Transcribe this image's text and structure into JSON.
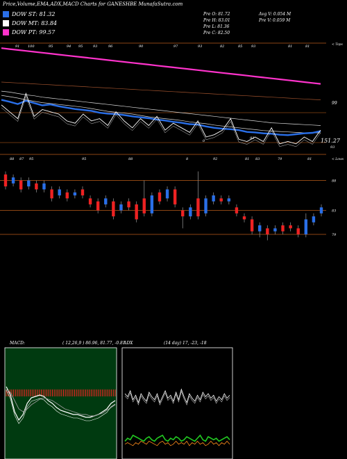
{
  "title": "Price,Volume,EMA,ADX,MACD Charts for GANESHBE MunafaSutra.com",
  "legend": [
    {
      "label": "DOW ST: 81.32",
      "color": "#2a6fe8"
    },
    {
      "label": "DOW MT: 83.84",
      "color": "#ffffff"
    },
    {
      "label": "DOW PT: 99.57",
      "color": "#ff33cc"
    }
  ],
  "stats": {
    "prev_o": "Pre  O: 81.72",
    "prev_h": "Pre  H: 83.01",
    "prev_l": "Pre  L: 81.36",
    "prev_c": "Pre  C: 82.50",
    "avg_v": "Avg V: 0.054  M",
    "prev_v": "Pre  V: 0.059 M"
  },
  "chart_data": [
    {
      "type": "line",
      "name": "price-ema-panel",
      "top_axis_label": "< Tops",
      "top_tick_labels": [
        "91",
        "100",
        "95",
        "94",
        "95",
        "93",
        "96",
        "90",
        "97",
        "93",
        "82",
        "85",
        "93",
        "81",
        "81"
      ],
      "right_labels": [
        "99",
        "151.27",
        "93"
      ],
      "bottom_inner_labels": [
        "0",
        "93"
      ],
      "series": [
        {
          "key": "pt",
          "color": "#ff33cc",
          "values": [
            99.9,
            99.7,
            99.5,
            99.3,
            99.1,
            98.9,
            98.7,
            98.5,
            98.3,
            98.1,
            97.9,
            97.7,
            97.5,
            97.3,
            97.1,
            96.9,
            96.7,
            96.5,
            96.3,
            96.1,
            95.9,
            95.7,
            95.5,
            95.3,
            95.1,
            94.9,
            94.7,
            94.5,
            94.3,
            94.1,
            93.9,
            93.7,
            93.5,
            93.3,
            93.1,
            92.9,
            92.7,
            92.5,
            92.3,
            92.1
          ]
        },
        {
          "key": "brown",
          "color": "#a0522d",
          "values": [
            92.5,
            92.4,
            92.3,
            92.2,
            92.1,
            92.0,
            91.9,
            91.8,
            91.7,
            91.6,
            91.5,
            91.4,
            91.3,
            91.2,
            91.1,
            91.0,
            90.9,
            90.8,
            90.7,
            90.6,
            90.5,
            90.4,
            90.3,
            90.2,
            90.1,
            90.0,
            89.9,
            89.8,
            89.7,
            89.6,
            89.5,
            89.4,
            89.3,
            89.2,
            89.1,
            89.0,
            88.9,
            88.8,
            88.7,
            88.6
          ]
        },
        {
          "key": "white1",
          "color": "#dddddd",
          "values": [
            90.5,
            90.3,
            90.0,
            89.7,
            89.5,
            89.2,
            89.0,
            88.8,
            88.6,
            88.4,
            88.2,
            88.0,
            87.8,
            87.6,
            87.4,
            87.2,
            87.0,
            86.8,
            86.6,
            86.4,
            86.2,
            86.0,
            85.8,
            85.6,
            85.4,
            85.2,
            85.0,
            84.8,
            84.6,
            84.4,
            84.2,
            84.0,
            83.8,
            83.6,
            83.5,
            83.4,
            83.3,
            83.2,
            83.1,
            83.0
          ]
        },
        {
          "key": "white2",
          "color": "#dddddd",
          "values": [
            89.6,
            89.3,
            89.0,
            88.6,
            88.3,
            88.0,
            87.8,
            87.6,
            87.4,
            87.2,
            87.0,
            86.7,
            86.4,
            86.1,
            85.9,
            85.7,
            85.5,
            85.2,
            84.9,
            84.7,
            84.5,
            84.3,
            84.1,
            83.8,
            83.6,
            83.4,
            83.1,
            82.9,
            82.7,
            82.5,
            82.3,
            82.1,
            81.9,
            81.8,
            81.7,
            81.6,
            81.5,
            81.4,
            81.4,
            81.4
          ]
        },
        {
          "key": "st",
          "color": "#2a6fe8",
          "values": [
            88.6,
            88.2,
            87.7,
            88.4,
            87.9,
            87.4,
            87.6,
            87.2,
            86.9,
            86.6,
            86.4,
            86.2,
            85.8,
            85.6,
            85.5,
            85.3,
            85.0,
            84.8,
            84.6,
            84.3,
            84.1,
            83.8,
            83.6,
            83.3,
            83.2,
            82.8,
            82.5,
            82.3,
            82.2,
            82.0,
            81.6,
            81.5,
            81.3,
            81.2,
            81.0,
            80.9,
            81.1,
            81.3,
            81.4,
            81.8
          ]
        },
        {
          "key": "price",
          "color": "#ffffff",
          "values": [
            87.5,
            86.0,
            84.5,
            90.0,
            85.0,
            86.5,
            86.0,
            85.5,
            84.0,
            83.5,
            85.5,
            84.0,
            84.5,
            83.0,
            86.0,
            84.0,
            82.5,
            84.5,
            83.0,
            85.0,
            82.0,
            83.5,
            82.5,
            81.5,
            84.0,
            80.5,
            81.0,
            82.0,
            84.5,
            80.0,
            79.5,
            80.5,
            79.5,
            82.5,
            79.0,
            79.5,
            79.0,
            80.5,
            79.5,
            82.0
          ]
        }
      ],
      "ylim": [
        77,
        101
      ]
    },
    {
      "type": "candlestick",
      "name": "candle-panel",
      "bottom_axis_label": "< Lows",
      "tick_labels": [
        "88",
        "87",
        "95",
        "95",
        "88",
        "8",
        "92",
        "81",
        "83",
        "79",
        "81"
      ],
      "right_labels": [
        "88",
        "83",
        "79"
      ],
      "hlines": [
        88,
        83,
        79
      ],
      "ylim": [
        74,
        92
      ],
      "candles": [
        {
          "o": 89.0,
          "c": 87.0,
          "h": 89.5,
          "l": 86.5
        },
        {
          "o": 87.5,
          "c": 88.5,
          "h": 89.0,
          "l": 87.0
        },
        {
          "o": 88.0,
          "c": 86.5,
          "h": 88.5,
          "l": 86.0
        },
        {
          "o": 87.0,
          "c": 88.0,
          "h": 88.5,
          "l": 86.5
        },
        {
          "o": 87.5,
          "c": 86.5,
          "h": 88.0,
          "l": 86.0
        },
        {
          "o": 86.5,
          "c": 87.5,
          "h": 88.0,
          "l": 86.0
        },
        {
          "o": 86.5,
          "c": 85.0,
          "h": 87.0,
          "l": 84.5
        },
        {
          "o": 85.5,
          "c": 86.5,
          "h": 87.0,
          "l": 85.0
        },
        {
          "o": 86.0,
          "c": 85.0,
          "h": 86.5,
          "l": 84.5
        },
        {
          "o": 85.5,
          "c": 86.0,
          "h": 86.5,
          "l": 85.0
        },
        {
          "o": 86.5,
          "c": 85.5,
          "h": 87.0,
          "l": 85.0
        },
        {
          "o": 85.0,
          "c": 84.0,
          "h": 85.5,
          "l": 83.5
        },
        {
          "o": 84.5,
          "c": 83.0,
          "h": 85.0,
          "l": 82.5
        },
        {
          "o": 84.0,
          "c": 85.0,
          "h": 85.5,
          "l": 83.5
        },
        {
          "o": 84.5,
          "c": 82.0,
          "h": 85.0,
          "l": 81.5
        },
        {
          "o": 83.0,
          "c": 84.0,
          "h": 84.5,
          "l": 82.5
        },
        {
          "o": 84.5,
          "c": 83.5,
          "h": 85.0,
          "l": 83.0
        },
        {
          "o": 84.0,
          "c": 81.5,
          "h": 84.5,
          "l": 81.0
        },
        {
          "o": 85.0,
          "c": 82.5,
          "h": 88.0,
          "l": 82.0
        },
        {
          "o": 82.5,
          "c": 85.5,
          "h": 86.0,
          "l": 82.0
        },
        {
          "o": 86.0,
          "c": 84.5,
          "h": 86.5,
          "l": 84.0
        },
        {
          "o": 85.0,
          "c": 86.5,
          "h": 87.0,
          "l": 84.5
        },
        {
          "o": 86.5,
          "c": 84.0,
          "h": 87.0,
          "l": 83.5
        },
        {
          "o": 83.0,
          "c": 82.0,
          "h": 83.5,
          "l": 80.0
        },
        {
          "o": 82.0,
          "c": 83.5,
          "h": 84.0,
          "l": 81.5
        },
        {
          "o": 85.0,
          "c": 82.0,
          "h": 89.5,
          "l": 81.5
        },
        {
          "o": 82.5,
          "c": 85.0,
          "h": 85.5,
          "l": 82.0
        },
        {
          "o": 84.5,
          "c": 85.5,
          "h": 86.0,
          "l": 84.0
        },
        {
          "o": 85.0,
          "c": 84.5,
          "h": 85.5,
          "l": 84.0
        },
        {
          "o": 84.5,
          "c": 85.0,
          "h": 85.5,
          "l": 84.0
        },
        {
          "o": 83.5,
          "c": 82.5,
          "h": 84.0,
          "l": 82.0
        },
        {
          "o": 82.0,
          "c": 81.5,
          "h": 82.5,
          "l": 81.0
        },
        {
          "o": 81.5,
          "c": 79.5,
          "h": 82.0,
          "l": 79.0
        },
        {
          "o": 79.5,
          "c": 80.5,
          "h": 81.0,
          "l": 78.5
        },
        {
          "o": 80.0,
          "c": 79.0,
          "h": 80.5,
          "l": 78.0
        },
        {
          "o": 79.5,
          "c": 80.0,
          "h": 80.5,
          "l": 79.0
        },
        {
          "o": 80.5,
          "c": 79.5,
          "h": 81.0,
          "l": 79.0
        },
        {
          "o": 80.5,
          "c": 80.0,
          "h": 81.0,
          "l": 79.5
        },
        {
          "o": 80.0,
          "c": 79.0,
          "h": 80.5,
          "l": 78.5
        },
        {
          "o": 79.0,
          "c": 81.5,
          "h": 82.5,
          "l": 78.5
        },
        {
          "o": 81.0,
          "c": 82.0,
          "h": 82.5,
          "l": 80.5
        },
        {
          "o": 82.5,
          "c": 83.5,
          "h": 84.0,
          "l": 82.0
        }
      ]
    },
    {
      "type": "line",
      "name": "macd-panel",
      "label": "MACD:",
      "params": "( 12,26,9 ) 86.96, 81.77, -0.81",
      "series": [
        {
          "key": "macd",
          "color": "#ffffff",
          "values": [
            0.2,
            -0.4,
            -1.6,
            -2.2,
            -1.8,
            -1.0,
            -0.6,
            -0.5,
            -0.4,
            -0.5,
            -0.8,
            -1.0,
            -1.3,
            -1.5,
            -1.6,
            -1.7,
            -1.8,
            -1.8,
            -1.9,
            -2.0,
            -2.0,
            -1.9,
            -1.8,
            -1.6,
            -1.4,
            -1.0,
            -0.8
          ]
        },
        {
          "key": "signal",
          "color": "#999999",
          "values": [
            0.0,
            -0.2,
            -0.8,
            -1.4,
            -1.6,
            -1.4,
            -1.1,
            -0.9,
            -0.7,
            -0.6,
            -0.7,
            -0.8,
            -1.0,
            -1.2,
            -1.4,
            -1.5,
            -1.6,
            -1.7,
            -1.8,
            -1.8,
            -1.9,
            -1.9,
            -1.8,
            -1.7,
            -1.5,
            -1.3,
            -1.1
          ]
        }
      ],
      "histogram_color": "#ff2222",
      "ylim": [
        -5,
        3
      ]
    },
    {
      "type": "line",
      "name": "adx-panel",
      "label": "ADX",
      "params": "(14  day) 17,  -23,  -18",
      "series": [
        {
          "key": "adx-upper",
          "color": "#ffffff",
          "values": [
            24,
            22,
            26,
            20,
            23,
            18,
            24,
            21,
            19,
            25,
            22,
            20,
            24,
            18,
            22,
            26,
            21,
            23,
            19,
            25,
            20,
            27,
            22,
            18,
            24,
            21,
            19,
            23,
            20,
            25,
            22,
            24,
            21,
            23,
            19,
            22,
            20,
            24,
            21,
            23
          ]
        },
        {
          "key": "plus-di",
          "color": "#22cc22",
          "values": [
            62,
            64,
            63,
            66,
            65,
            64,
            63,
            62,
            64,
            65,
            63,
            62,
            64,
            65,
            66,
            63,
            62,
            64,
            63,
            65,
            64,
            62,
            63,
            65,
            64,
            63,
            62,
            64,
            66,
            63,
            62,
            65,
            64,
            63,
            64,
            62,
            63,
            64,
            65,
            63
          ]
        },
        {
          "key": "minus-di",
          "color": "#ff8c1a",
          "values": [
            60,
            61,
            60,
            59,
            61,
            60,
            62,
            61,
            60,
            62,
            61,
            60,
            59,
            61,
            62,
            60,
            61,
            59,
            60,
            62,
            60,
            61,
            60,
            62,
            59,
            61,
            60,
            62,
            60,
            61,
            59,
            60,
            62,
            60,
            61,
            59,
            61,
            60,
            62,
            60
          ]
        }
      ],
      "ylim": [
        0,
        75
      ]
    }
  ]
}
